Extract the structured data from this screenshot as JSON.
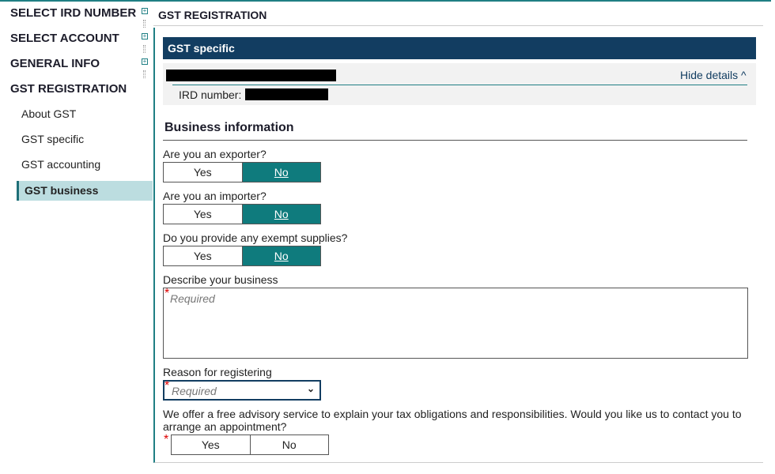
{
  "sidebar": {
    "sections": [
      {
        "label": "SELECT IRD NUMBER"
      },
      {
        "label": "SELECT ACCOUNT"
      },
      {
        "label": "GENERAL INFO"
      },
      {
        "label": "GST REGISTRATION"
      }
    ],
    "items": [
      {
        "label": "About GST"
      },
      {
        "label": "GST specific"
      },
      {
        "label": "GST accounting"
      },
      {
        "label": "GST business",
        "active": true
      }
    ],
    "active_color": "#bcdde0"
  },
  "header": {
    "title": "GST REGISTRATION"
  },
  "panel": {
    "title": "GST specific",
    "hide_details": "Hide details ^",
    "ird_label": "IRD number:",
    "section_title": "Business information",
    "questions": [
      {
        "label": "Are you an exporter?",
        "yes": "Yes",
        "no": "No",
        "selected": "No"
      },
      {
        "label": "Are you an importer?",
        "yes": "Yes",
        "no": "No",
        "selected": "No"
      },
      {
        "label": "Do you provide any exempt supplies?",
        "yes": "Yes",
        "no": "No",
        "selected": "No"
      }
    ],
    "describe": {
      "label": "Describe your business",
      "placeholder": "Required"
    },
    "reason": {
      "label": "Reason for registering",
      "placeholder": "Required"
    },
    "advisory": {
      "label": "We offer a free advisory service to explain your tax obligations and responsibilities. Would you like us to contact you to arrange an appointment?",
      "yes": "Yes",
      "no": "No"
    },
    "accent": "#0f7b7d",
    "title_bar_color": "#123d61"
  }
}
